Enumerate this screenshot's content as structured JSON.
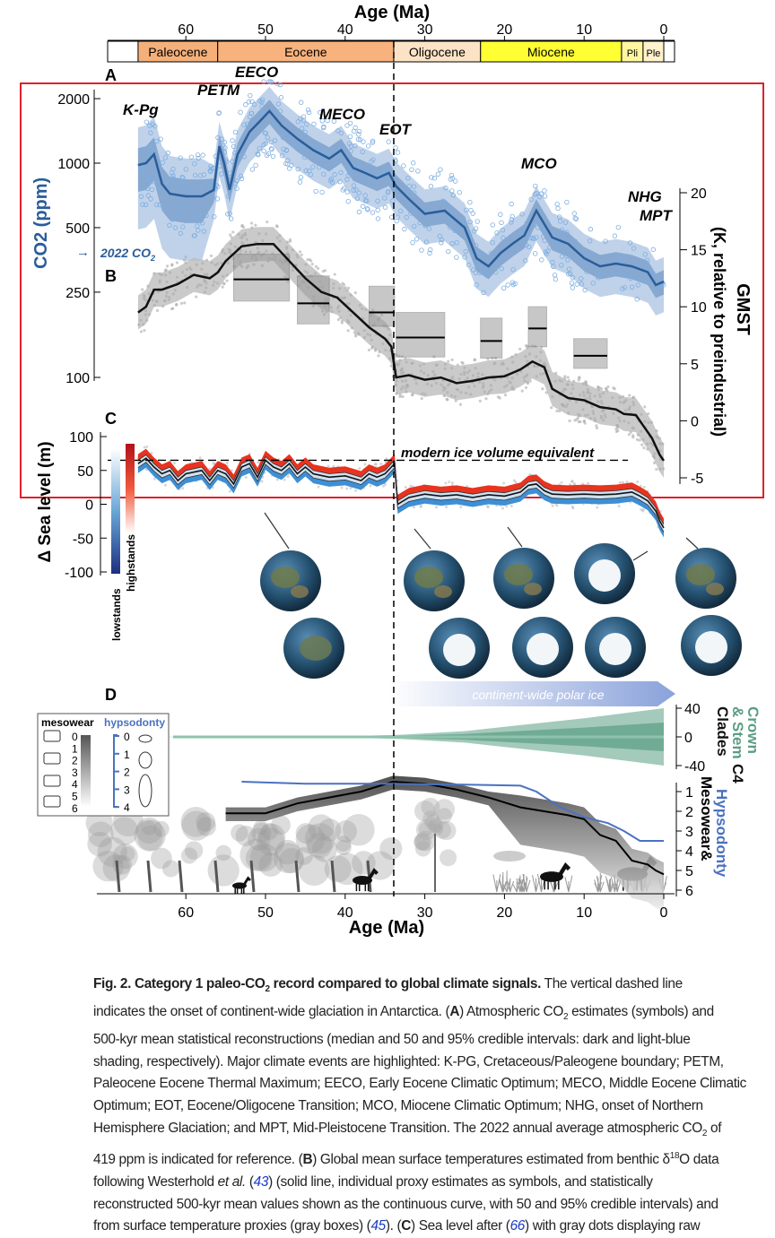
{
  "figure": {
    "top_axis_title": "Age (Ma)",
    "bottom_axis_title": "Age (Ma)",
    "age_ticks": [
      60,
      50,
      40,
      30,
      20,
      10,
      0
    ],
    "epochs": [
      {
        "name": "Paleocene",
        "start": 66,
        "end": 56,
        "color": "#f5b07a"
      },
      {
        "name": "Eocene",
        "start": 56,
        "end": 33.9,
        "color": "#f7b27d"
      },
      {
        "name": "Oligocene",
        "start": 33.9,
        "end": 23,
        "color": "#fde3c6"
      },
      {
        "name": "Miocene",
        "start": 23,
        "end": 5.3,
        "color": "#ffff33"
      },
      {
        "name": "Pli",
        "start": 5.3,
        "end": 2.6,
        "color": "#fff6a0"
      },
      {
        "name": "Ple",
        "start": 2.6,
        "end": 0,
        "color": "#fff2cc"
      }
    ],
    "panel_labels": [
      "A",
      "B",
      "C",
      "D"
    ],
    "event_labels": [
      {
        "text": "K-Pg",
        "age": 63
      },
      {
        "text": "PETM",
        "age": 55
      },
      {
        "text": "EECO",
        "age": 50.5
      },
      {
        "text": "MECO",
        "age": 40
      },
      {
        "text": "EOT",
        "age": 33
      },
      {
        "text": "MCO",
        "age": 15.5
      },
      {
        "text": "NHG",
        "age": 2.5
      },
      {
        "text": "MPT",
        "age": 0.8
      }
    ],
    "co2_ref_label": "2022 CO",
    "co2_ref_sub": "2",
    "co2_ref_value": 419,
    "co2_axis_label": "CO",
    "co2_axis_sub": "2",
    "co2_axis_unit": " (ppm)",
    "co2_ticks": [
      2000,
      1000,
      500,
      250,
      100
    ],
    "gmst_axis_label": "GMST",
    "gmst_axis_unit": "(K, relative to preindustrial)",
    "gmst_ticks": [
      20,
      15,
      10,
      5,
      0,
      -5
    ],
    "sea_axis_label": "Δ Sea level (m)",
    "sea_ticks": [
      100,
      50,
      0,
      -50,
      -100
    ],
    "sea_annotation": "modern ice volume equivalent",
    "sea_modern_value": 65,
    "legend_lowstands": "lowstands",
    "legend_highstands": "highstands",
    "polar_ice_label": "continent-wide polar ice",
    "glaciation_onset_age": 33.9,
    "c4_axis_label_1": "C4",
    "c4_axis_label_2": "Crown",
    "c4_axis_label_3": "& Stem",
    "c4_axis_label_4": "Clades",
    "c4_ticks": [
      40,
      0,
      -40
    ],
    "mesowear_axis_label": "Mesowear&",
    "hypsodonty_axis_label": "Hypsodonty",
    "mesowear_ticks": [
      1,
      2,
      3,
      4,
      5,
      6
    ],
    "legend": {
      "mesowear_title": "mesowear",
      "hypsodonty_title": "hypsodonty",
      "mesowear_scale": [
        "0",
        "1",
        "2",
        "3",
        "4",
        "5",
        "6"
      ],
      "hypsodonty_scale": [
        "0",
        "1",
        "2",
        "3",
        "4"
      ]
    },
    "colors": {
      "co2": "#2a5d9a",
      "co2_light": "#a9c3e3",
      "co2_points": "#7eaee0",
      "gmst": "#111111",
      "gmst_band": "#bdbdbd",
      "sea_high": "#e8331f",
      "sea_low": "#3d8fd6",
      "c4": "#5a9e84",
      "hyps": "#4a72c0",
      "highlight_box": "#e0202a"
    }
  },
  "chart_data": [
    {
      "type": "line",
      "title": "Atmospheric CO2",
      "panel": "A",
      "xlabel": "Age (Ma)",
      "ylabel": "CO2 (ppm)",
      "yscale": "log",
      "ylim": [
        100,
        2000
      ],
      "xlim": [
        66,
        0
      ],
      "series": [
        {
          "name": "median CO2",
          "x": [
            66,
            65,
            64,
            63,
            62,
            60,
            58,
            56.5,
            55.8,
            55.2,
            54.5,
            53.5,
            52,
            50.5,
            49.5,
            48,
            46,
            44,
            42,
            40.5,
            39,
            37.5,
            36,
            34.5,
            33.6,
            32,
            30,
            27.5,
            25,
            23.5,
            22,
            20.5,
            19,
            17.5,
            16,
            15,
            14,
            12,
            10,
            8,
            6,
            4,
            2,
            1,
            0
          ],
          "y": [
            980,
            1000,
            1100,
            800,
            720,
            700,
            700,
            750,
            1200,
            1000,
            750,
            1100,
            1400,
            1600,
            1750,
            1500,
            1300,
            1150,
            1050,
            1150,
            950,
            900,
            850,
            900,
            780,
            680,
            580,
            600,
            500,
            360,
            330,
            380,
            420,
            460,
            600,
            520,
            450,
            420,
            360,
            330,
            340,
            330,
            310,
            270,
            280
          ]
        }
      ]
    },
    {
      "type": "line",
      "title": "Global mean surface temperature",
      "panel": "B",
      "xlabel": "Age (Ma)",
      "ylabel": "GMST (K, relative to preindustrial)",
      "ylim": [
        -5,
        20
      ],
      "series": [
        {
          "name": "GMST mean",
          "x": [
            66,
            65,
            64,
            63,
            61,
            59,
            57,
            56,
            55,
            53,
            51,
            49,
            47,
            45,
            43,
            41,
            39,
            37,
            35,
            34.2,
            33.6,
            32,
            30,
            28,
            26,
            24,
            22,
            20,
            18,
            16.5,
            15,
            14,
            12,
            10,
            8,
            6,
            5,
            3.5,
            2.5,
            1.5,
            0.5,
            0
          ],
          "y": [
            9.5,
            10,
            11.5,
            11.5,
            12,
            12.8,
            12.5,
            13,
            14,
            15.3,
            15.5,
            15.5,
            14,
            12.5,
            11.3,
            10.8,
            9.5,
            8.2,
            7.2,
            6.5,
            3.8,
            4,
            3.6,
            3.8,
            3.3,
            3.5,
            3.8,
            3.9,
            4.5,
            5.2,
            4.7,
            2.8,
            2,
            1.8,
            1.2,
            1,
            0.6,
            0.5,
            -0.5,
            -1.5,
            -3,
            -3.5
          ]
        }
      ],
      "proxy_boxes": [
        {
          "age_from": 54,
          "age_to": 47,
          "mean": 12.4,
          "lo": 10.5,
          "hi": 14.6
        },
        {
          "age_from": 46,
          "age_to": 42,
          "mean": 10.3,
          "lo": 8.5,
          "hi": 12.7
        },
        {
          "age_from": 37,
          "age_to": 33.8,
          "mean": 9.5,
          "lo": 8.3,
          "hi": 11.8
        },
        {
          "age_from": 33.6,
          "age_to": 27.5,
          "mean": 7.3,
          "lo": 5.6,
          "hi": 9.5
        },
        {
          "age_from": 23,
          "age_to": 20.3,
          "mean": 7,
          "lo": 5.5,
          "hi": 9
        },
        {
          "age_from": 17,
          "age_to": 14.7,
          "mean": 8.1,
          "lo": 6.5,
          "hi": 10
        },
        {
          "age_from": 11.3,
          "age_to": 7.1,
          "mean": 5.7,
          "lo": 4.6,
          "hi": 7.2
        }
      ]
    },
    {
      "type": "area",
      "title": "Sea level",
      "panel": "C",
      "xlabel": "Age (Ma)",
      "ylabel": "Δ Sea level (m)",
      "ylim": [
        -100,
        100
      ],
      "series": [
        {
          "name": "median sea level",
          "x": [
            66,
            65,
            64,
            63,
            62,
            61,
            60,
            58,
            57,
            56,
            55,
            54,
            53,
            52,
            51,
            50,
            49,
            48,
            47,
            46,
            45,
            44,
            42,
            40,
            38,
            37,
            36,
            35,
            34.2,
            33.8,
            33.4,
            32,
            30,
            28,
            26,
            24,
            22,
            20,
            18,
            17,
            16,
            15,
            14,
            12,
            10,
            8,
            6,
            4,
            3,
            2,
            1,
            0.5,
            0
          ],
          "y": [
            60,
            68,
            55,
            45,
            50,
            35,
            45,
            50,
            35,
            50,
            45,
            30,
            55,
            60,
            40,
            65,
            55,
            50,
            60,
            45,
            55,
            45,
            40,
            42,
            35,
            45,
            40,
            45,
            55,
            60,
            0,
            10,
            15,
            12,
            14,
            10,
            14,
            12,
            18,
            28,
            30,
            20,
            15,
            14,
            15,
            14,
            15,
            18,
            12,
            5,
            -10,
            -25,
            -35
          ]
        }
      ]
    },
    {
      "type": "area",
      "title": "C4 crown & stem clades",
      "panel": "D",
      "ylim": [
        -40,
        40
      ],
      "series": [
        {
          "name": "half-width",
          "x": [
            66,
            40,
            33,
            25,
            20,
            15,
            10,
            5,
            0
          ],
          "y": [
            0,
            1,
            3,
            8,
            14,
            20,
            26,
            33,
            40
          ]
        }
      ]
    },
    {
      "type": "line",
      "title": "Mesowear & Hypsodonty",
      "panel": "D",
      "ylim": [
        6,
        0
      ],
      "series": [
        {
          "name": "mesowear",
          "x": [
            55,
            50,
            46,
            42,
            38,
            34,
            30,
            26,
            22,
            18,
            15,
            12,
            10,
            8,
            6,
            4,
            2,
            1,
            0
          ],
          "y": [
            2.1,
            2.1,
            1.6,
            1.3,
            1.0,
            0.5,
            0.6,
            0.9,
            1.3,
            1.8,
            2.0,
            2.2,
            2.4,
            3.2,
            3.5,
            4.5,
            4.7,
            5,
            5.2
          ]
        },
        {
          "name": "hypsodonty",
          "x": [
            53,
            45,
            35,
            25,
            18,
            16,
            13,
            10,
            7,
            5,
            3,
            1,
            0
          ],
          "y": [
            0.5,
            0.6,
            0.6,
            0.65,
            0.7,
            1,
            1.8,
            2.3,
            2.6,
            3,
            3.5,
            3.5,
            3.5
          ]
        }
      ]
    }
  ],
  "caption": {
    "lines": [
      [
        {
          "t": "Fig. 2. Category 1 paleo-CO",
          "s": "b"
        },
        {
          "t": "2",
          "s": "bsub"
        },
        {
          "t": " record compared to global climate signals.",
          "s": "b"
        },
        {
          "t": " The vertical dashed line",
          "s": ""
        }
      ],
      [
        {
          "t": "indicates the onset of continent-wide glaciation in Antarctica. (",
          "s": ""
        },
        {
          "t": "A",
          "s": "b"
        },
        {
          "t": ") Atmospheric CO",
          "s": ""
        },
        {
          "t": "2",
          "s": "sub"
        },
        {
          "t": " estimates (symbols) and",
          "s": ""
        }
      ],
      [
        {
          "t": "500-kyr mean statistical reconstructions (median and 50 and 95% credible intervals: dark and light-blue",
          "s": ""
        }
      ],
      [
        {
          "t": "shading, respectively). Major climate events are highlighted: K-PG, Cretaceous/Paleogene boundary; PETM,",
          "s": ""
        }
      ],
      [
        {
          "t": "Paleocene Eocene Thermal Maximum; EECO, Early Eocene Climatic Optimum; MECO, Middle Eocene Climatic",
          "s": ""
        }
      ],
      [
        {
          "t": "Optimum; EOT, Eocene/Oligocene Transition; MCO, Miocene Climatic Optimum; NHG, onset of Northern",
          "s": ""
        }
      ],
      [
        {
          "t": "Hemisphere Glaciation; and MPT, Mid-Pleistocene Transition. The 2022 annual average atmospheric CO",
          "s": ""
        },
        {
          "t": "2",
          "s": "sub"
        },
        {
          "t": " of",
          "s": ""
        }
      ],
      [
        {
          "t": "419 ppm is indicated for reference. (",
          "s": ""
        },
        {
          "t": "B",
          "s": "b"
        },
        {
          "t": ") Global mean surface temperatures estimated from benthic δ",
          "s": ""
        },
        {
          "t": "18",
          "s": "sup"
        },
        {
          "t": "O data",
          "s": ""
        }
      ],
      [
        {
          "t": "following Westerhold ",
          "s": ""
        },
        {
          "t": "et al.",
          "s": "i"
        },
        {
          "t": " (",
          "s": ""
        },
        {
          "t": "43",
          "s": "link"
        },
        {
          "t": ") (solid line, individual proxy estimates as symbols, and statistically",
          "s": ""
        }
      ],
      [
        {
          "t": "reconstructed 500-kyr mean values shown as the continuous curve, with 50 and 95% credible intervals) and",
          "s": ""
        }
      ],
      [
        {
          "t": "from surface temperature proxies (gray boxes) (",
          "s": ""
        },
        {
          "t": "45",
          "s": "link"
        },
        {
          "t": "). (",
          "s": ""
        },
        {
          "t": "C",
          "s": "b"
        },
        {
          "t": ") Sea level after (",
          "s": ""
        },
        {
          "t": "66",
          "s": "link"
        },
        {
          "t": ") with gray dots displaying raw",
          "s": ""
        }
      ]
    ]
  }
}
